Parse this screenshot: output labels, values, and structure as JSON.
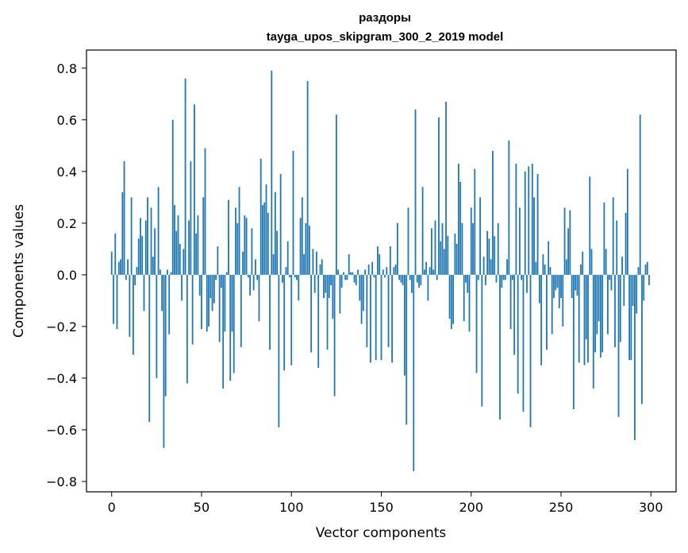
{
  "chart_data": {
    "type": "bar",
    "title": "раздоры",
    "subtitle": "tayga_upos_skipgram_300_2_2019 model",
    "xlabel": "Vector components",
    "ylabel": "Components values",
    "xlim": [
      -14,
      314
    ],
    "ylim": [
      -0.84,
      0.87
    ],
    "xticks": [
      0,
      50,
      100,
      150,
      200,
      250,
      300
    ],
    "xtick_labels": [
      "0",
      "50",
      "100",
      "150",
      "200",
      "250",
      "300"
    ],
    "yticks": [
      0.8,
      0.6,
      0.4,
      0.2,
      0.0,
      -0.2,
      -0.4,
      -0.6,
      -0.8
    ],
    "ytick_labels": [
      "0.8",
      "0.6",
      "0.4",
      "0.2",
      "0.0",
      "−0.2",
      "−0.4",
      "−0.6",
      "−0.8"
    ],
    "bar_color": "#1f77b4",
    "values": [
      0.09,
      -0.19,
      0.16,
      -0.21,
      0.05,
      0.06,
      0.32,
      0.44,
      -0.02,
      0.06,
      -0.24,
      0.3,
      -0.31,
      -0.04,
      0.03,
      0.14,
      0.22,
      0.15,
      -0.14,
      0.21,
      0.3,
      -0.57,
      0.26,
      0.07,
      0.18,
      -0.4,
      0.34,
      0.02,
      -0.14,
      -0.67,
      -0.47,
      0.02,
      -0.23,
      0.01,
      0.6,
      0.27,
      0.17,
      0.23,
      0.12,
      -0.1,
      0.1,
      0.76,
      -0.42,
      0.21,
      0.44,
      -0.27,
      0.66,
      0.16,
      0.23,
      -0.08,
      -0.21,
      0.3,
      0.49,
      -0.22,
      -0.2,
      -0.09,
      -0.14,
      -0.11,
      -0.02,
      0.11,
      -0.26,
      -0.05,
      -0.44,
      -0.22,
      0.01,
      0.29,
      -0.41,
      -0.22,
      -0.38,
      0.26,
      0.2,
      0.34,
      -0.28,
      0.09,
      0.23,
      0.22,
      -0.01,
      -0.08,
      0.18,
      -0.06,
      0.06,
      -0.02,
      -0.18,
      0.45,
      0.27,
      0.28,
      0.35,
      0.24,
      -0.29,
      0.79,
      0.08,
      0.32,
      0.17,
      -0.59,
      0.39,
      -0.03,
      -0.37,
      0.03,
      0.13,
      -0.01,
      -0.35,
      0.48,
      -0.01,
      -0.02,
      -0.1,
      0.22,
      0.3,
      0.08,
      0.2,
      0.75,
      0.19,
      -0.3,
      0.1,
      -0.07,
      0.09,
      -0.36,
      0.04,
      0.06,
      -0.09,
      -0.07,
      -0.29,
      -0.09,
      -0.04,
      -0.17,
      -0.47,
      0.62,
      0.02,
      -0.15,
      -0.05,
      0.01,
      -0.02,
      -0.02,
      0.08,
      0.01,
      0.01,
      -0.03,
      -0.04,
      0.02,
      -0.1,
      -0.19,
      -0.14,
      0.02,
      -0.28,
      0.04,
      -0.34,
      0.05,
      -0.01,
      -0.33,
      0.11,
      0.08,
      -0.33,
      0.02,
      -0.01,
      0.03,
      -0.28,
      0.11,
      -0.34,
      0.03,
      0.04,
      0.2,
      -0.02,
      -0.03,
      -0.04,
      -0.39,
      -0.58,
      0.26,
      -0.02,
      -0.07,
      -0.76,
      0.64,
      -0.03,
      -0.05,
      -0.04,
      0.34,
      0.02,
      0.05,
      -0.1,
      0.03,
      0.18,
      0.02,
      0.21,
      -0.02,
      0.61,
      0.13,
      0.2,
      0.1,
      0.67,
      0.15,
      -0.17,
      -0.21,
      -0.19,
      0.16,
      0.12,
      0.43,
      0.36,
      0.2,
      -0.18,
      -0.03,
      -0.07,
      -0.22,
      0.26,
      0.2,
      0.41,
      -0.38,
      -0.02,
      0.3,
      -0.51,
      0.07,
      -0.04,
      0.17,
      0.14,
      0.06,
      0.48,
      0.15,
      -0.03,
      0.2,
      -0.56,
      -0.05,
      -0.02,
      -0.02,
      0.06,
      0.52,
      -0.21,
      -0.02,
      -0.31,
      0.43,
      -0.46,
      0.26,
      -0.02,
      -0.53,
      0.4,
      -0.07,
      0.42,
      -0.59,
      0.43,
      0.3,
      0.05,
      0.39,
      -0.11,
      -0.35,
      0.08,
      0.04,
      -0.29,
      0.13,
      0.03,
      -0.23,
      -0.09,
      -0.06,
      -0.05,
      -0.13,
      -0.09,
      -0.2,
      0.26,
      0.06,
      0.18,
      0.25,
      -0.09,
      -0.52,
      -0.06,
      -0.08,
      -0.34,
      0.04,
      0.09,
      -0.35,
      -0.25,
      -0.34,
      0.38,
      0.1,
      -0.44,
      -0.3,
      -0.23,
      -0.18,
      -0.32,
      -0.3,
      0.28,
      0.1,
      -0.23,
      -0.02,
      -0.06,
      0.3,
      -0.28,
      0.21,
      -0.55,
      -0.26,
      0.07,
      -0.12,
      0.24,
      0.41,
      -0.33,
      -0.33,
      -0.12,
      -0.64,
      -0.15,
      0.03,
      0.62,
      -0.5,
      -0.1,
      0.04,
      0.05,
      -0.04
    ]
  }
}
